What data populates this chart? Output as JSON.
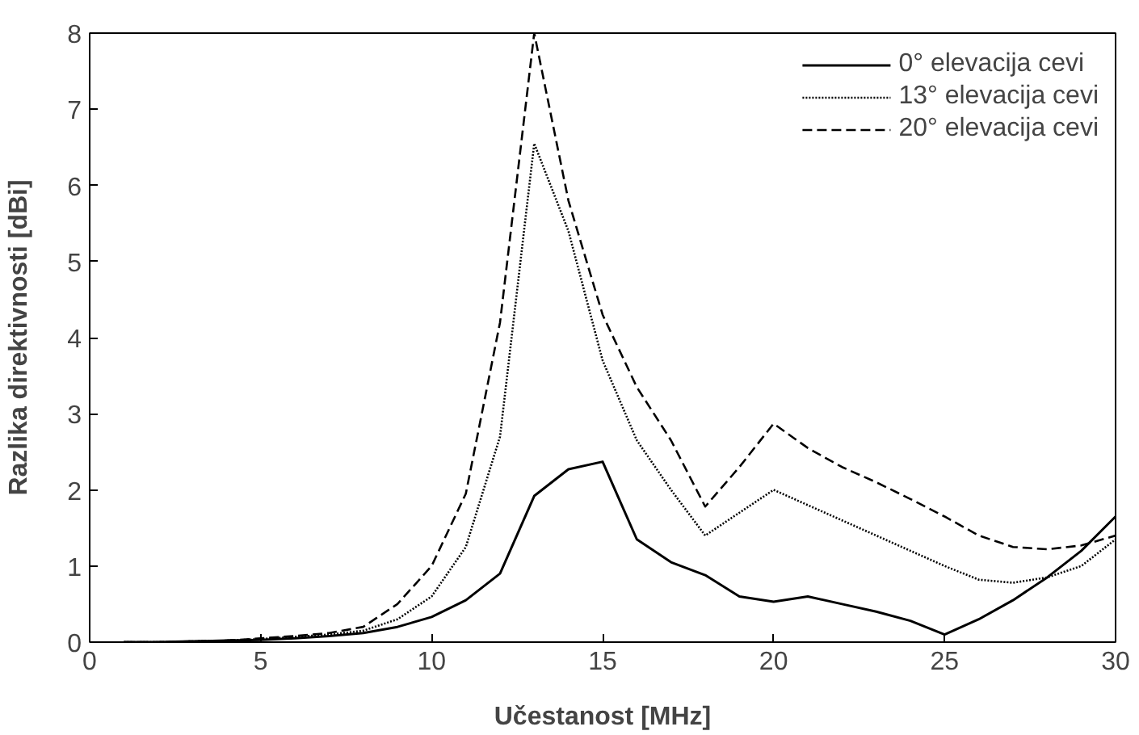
{
  "chart_data": {
    "type": "line",
    "xlabel": "Učestanost [MHz]",
    "ylabel": "Razlika direktivnosti [dBi]",
    "x": [
      1,
      2,
      3,
      4,
      5,
      6,
      7,
      8,
      9,
      10,
      11,
      12,
      13,
      14,
      15,
      16,
      17,
      18,
      19,
      20,
      21,
      22,
      23,
      24,
      25,
      26,
      27,
      28,
      29,
      30
    ],
    "series": [
      {
        "name": "0° elevacija cevi",
        "color": "#000000",
        "line_style": "solid",
        "values": [
          0,
          0,
          0.01,
          0.02,
          0.03,
          0.05,
          0.08,
          0.12,
          0.2,
          0.33,
          0.55,
          0.9,
          1.92,
          2.27,
          2.37,
          1.35,
          1.05,
          0.88,
          0.6,
          0.53,
          0.6,
          0.5,
          0.4,
          0.28,
          0.1,
          0.3,
          0.55,
          0.85,
          1.2,
          1.65
        ]
      },
      {
        "name": "13° elevacija cevi",
        "color": "#000000",
        "line_style": "dotted",
        "values": [
          0,
          0,
          0.01,
          0.02,
          0.04,
          0.07,
          0.1,
          0.15,
          0.3,
          0.6,
          1.25,
          2.7,
          6.55,
          5.4,
          3.7,
          2.65,
          2.0,
          1.4,
          1.7,
          2.0,
          1.8,
          1.6,
          1.4,
          1.2,
          1.0,
          0.82,
          0.78,
          0.85,
          1.0,
          1.35
        ]
      },
      {
        "name": "20° elevacija cevi",
        "color": "#000000",
        "line_style": "dashed",
        "values": [
          0,
          0,
          0.01,
          0.02,
          0.05,
          0.08,
          0.12,
          0.2,
          0.5,
          1.0,
          1.95,
          4.2,
          8.0,
          5.8,
          4.3,
          3.35,
          2.65,
          1.78,
          2.3,
          2.87,
          2.55,
          2.3,
          2.1,
          1.88,
          1.65,
          1.4,
          1.25,
          1.22,
          1.27,
          1.4
        ]
      }
    ],
    "xlim": [
      0,
      30
    ],
    "ylim": [
      0,
      8
    ],
    "xticks": [
      0,
      5,
      10,
      15,
      20,
      25,
      30
    ],
    "yticks": [
      0,
      1,
      2,
      3,
      4,
      5,
      6,
      7,
      8
    ],
    "grid": false,
    "legend": "top right"
  }
}
